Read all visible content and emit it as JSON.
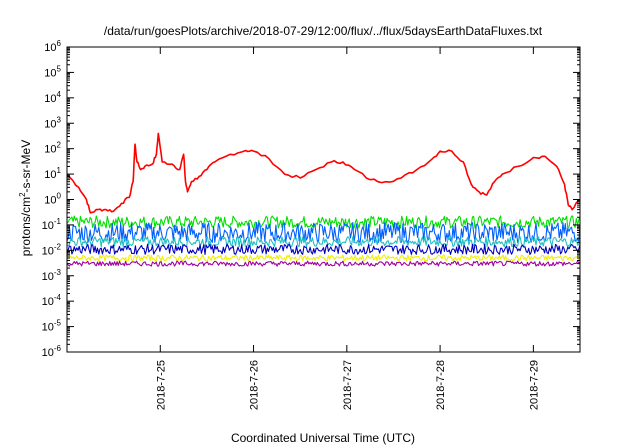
{
  "chart_data": {
    "type": "line",
    "title": "/data/run/goesPlots/archive/2018-07-29/12:00/flux/../flux/5daysEarthDataFluxes.txt",
    "xlabel": "Coordinated Universal Time (UTC)",
    "ylabel": {
      "prefix": "protons/cm",
      "superscript": "2",
      "suffix": "-s-sr-MeV"
    },
    "yscale": "log",
    "ylim": [
      1e-06,
      1000000.0
    ],
    "y_ticks": [
      {
        "value": 1e-06,
        "base": "10",
        "exp": "-6"
      },
      {
        "value": 1e-05,
        "base": "10",
        "exp": "-5"
      },
      {
        "value": 0.0001,
        "base": "10",
        "exp": "-4"
      },
      {
        "value": 0.001,
        "base": "10",
        "exp": "-3"
      },
      {
        "value": 0.01,
        "base": "10",
        "exp": "-2"
      },
      {
        "value": 0.1,
        "base": "10",
        "exp": "-1"
      },
      {
        "value": 1,
        "base": "10",
        "exp": "0"
      },
      {
        "value": 10,
        "base": "10",
        "exp": "1"
      },
      {
        "value": 100,
        "base": "10",
        "exp": "2"
      },
      {
        "value": 1000,
        "base": "10",
        "exp": "3"
      },
      {
        "value": 10000,
        "base": "10",
        "exp": "4"
      },
      {
        "value": 100000,
        "base": "10",
        "exp": "5"
      },
      {
        "value": 1000000,
        "base": "10",
        "exp": "6"
      }
    ],
    "xlim": [
      "2018-07-24T00:00",
      "2018-07-29T12:00"
    ],
    "x_ticks": [
      {
        "value": "2018-07-25T00:00",
        "label": "2018-7-25"
      },
      {
        "value": "2018-07-26T00:00",
        "label": "2018-7-26"
      },
      {
        "value": "2018-07-27T00:00",
        "label": "2018-7-27"
      },
      {
        "value": "2018-07-28T00:00",
        "label": "2018-7-28"
      },
      {
        "value": "2018-07-29T00:00",
        "label": "2018-7-29"
      }
    ],
    "grid": false,
    "legend": false,
    "series": [
      {
        "color": "#ff0000",
        "x": [
          "2018-07-24T00:00",
          "2018-07-24T03:00",
          "2018-07-24T05:00",
          "2018-07-24T06:00",
          "2018-07-24T08:00",
          "2018-07-24T10:00",
          "2018-07-24T12:00",
          "2018-07-24T14:00",
          "2018-07-24T16:00",
          "2018-07-24T17:00",
          "2018-07-24T17:30",
          "2018-07-24T18:00",
          "2018-07-24T19:00",
          "2018-07-24T20:00",
          "2018-07-24T22:00",
          "2018-07-24T23:00",
          "2018-07-24T23:30",
          "2018-07-25T00:30",
          "2018-07-25T03:00",
          "2018-07-25T05:00",
          "2018-07-25T06:00",
          "2018-07-25T06:30",
          "2018-07-25T07:00",
          "2018-07-25T08:00",
          "2018-07-25T10:00",
          "2018-07-25T12:00",
          "2018-07-25T14:00",
          "2018-07-25T18:00",
          "2018-07-25T22:00",
          "2018-07-26T00:00",
          "2018-07-26T04:00",
          "2018-07-26T08:00",
          "2018-07-26T12:00",
          "2018-07-26T16:00",
          "2018-07-26T20:00",
          "2018-07-26T23:00",
          "2018-07-27T02:00",
          "2018-07-27T06:00",
          "2018-07-27T10:00",
          "2018-07-27T14:00",
          "2018-07-27T18:00",
          "2018-07-27T22:00",
          "2018-07-28T00:00",
          "2018-07-28T03:00",
          "2018-07-28T06:00",
          "2018-07-28T08:00",
          "2018-07-28T10:00",
          "2018-07-28T12:00",
          "2018-07-28T14:00",
          "2018-07-28T16:00",
          "2018-07-28T20:00",
          "2018-07-29T00:00",
          "2018-07-29T03:00",
          "2018-07-29T06:00",
          "2018-07-29T08:00",
          "2018-07-29T09:00",
          "2018-07-29T10:00",
          "2018-07-29T12:00"
        ],
        "y": [
          10,
          3,
          1,
          0.3,
          0.4,
          0.4,
          0.35,
          0.7,
          1.2,
          5,
          150,
          30,
          15,
          20,
          25,
          60,
          400,
          30,
          25,
          15,
          60,
          5,
          2,
          5,
          8,
          15,
          30,
          60,
          85,
          80,
          40,
          10,
          7,
          15,
          30,
          30,
          15,
          6,
          5,
          7,
          15,
          40,
          80,
          80,
          30,
          4,
          2,
          1.5,
          5,
          10,
          20,
          45,
          50,
          20,
          4,
          0.6,
          0.4,
          1
        ]
      },
      {
        "color": "#00e000",
        "x": [
          "2018-07-24T00:00",
          "2018-07-29T12:00"
        ],
        "y": [
          0.13,
          0.13
        ],
        "jitter": 0.12
      },
      {
        "color": "#0060ff",
        "x": [
          "2018-07-24T00:00",
          "2018-07-29T12:00"
        ],
        "y": [
          0.05,
          0.05
        ],
        "jitter": 0.2
      },
      {
        "color": "#20c0c0",
        "x": [
          "2018-07-24T00:00",
          "2018-07-29T12:00"
        ],
        "y": [
          0.022,
          0.022
        ],
        "jitter": 0.1
      },
      {
        "color": "#0000c0",
        "x": [
          "2018-07-24T00:00",
          "2018-07-29T12:00"
        ],
        "y": [
          0.011,
          0.011
        ],
        "jitter": 0.1
      },
      {
        "color": "#f0f000",
        "x": [
          "2018-07-24T00:00",
          "2018-07-29T12:00"
        ],
        "y": [
          0.005,
          0.005
        ],
        "jitter": 0.06
      },
      {
        "color": "#a000a0",
        "x": [
          "2018-07-24T00:00",
          "2018-07-29T12:00"
        ],
        "y": [
          0.003,
          0.003
        ],
        "jitter": 0.05
      }
    ]
  }
}
